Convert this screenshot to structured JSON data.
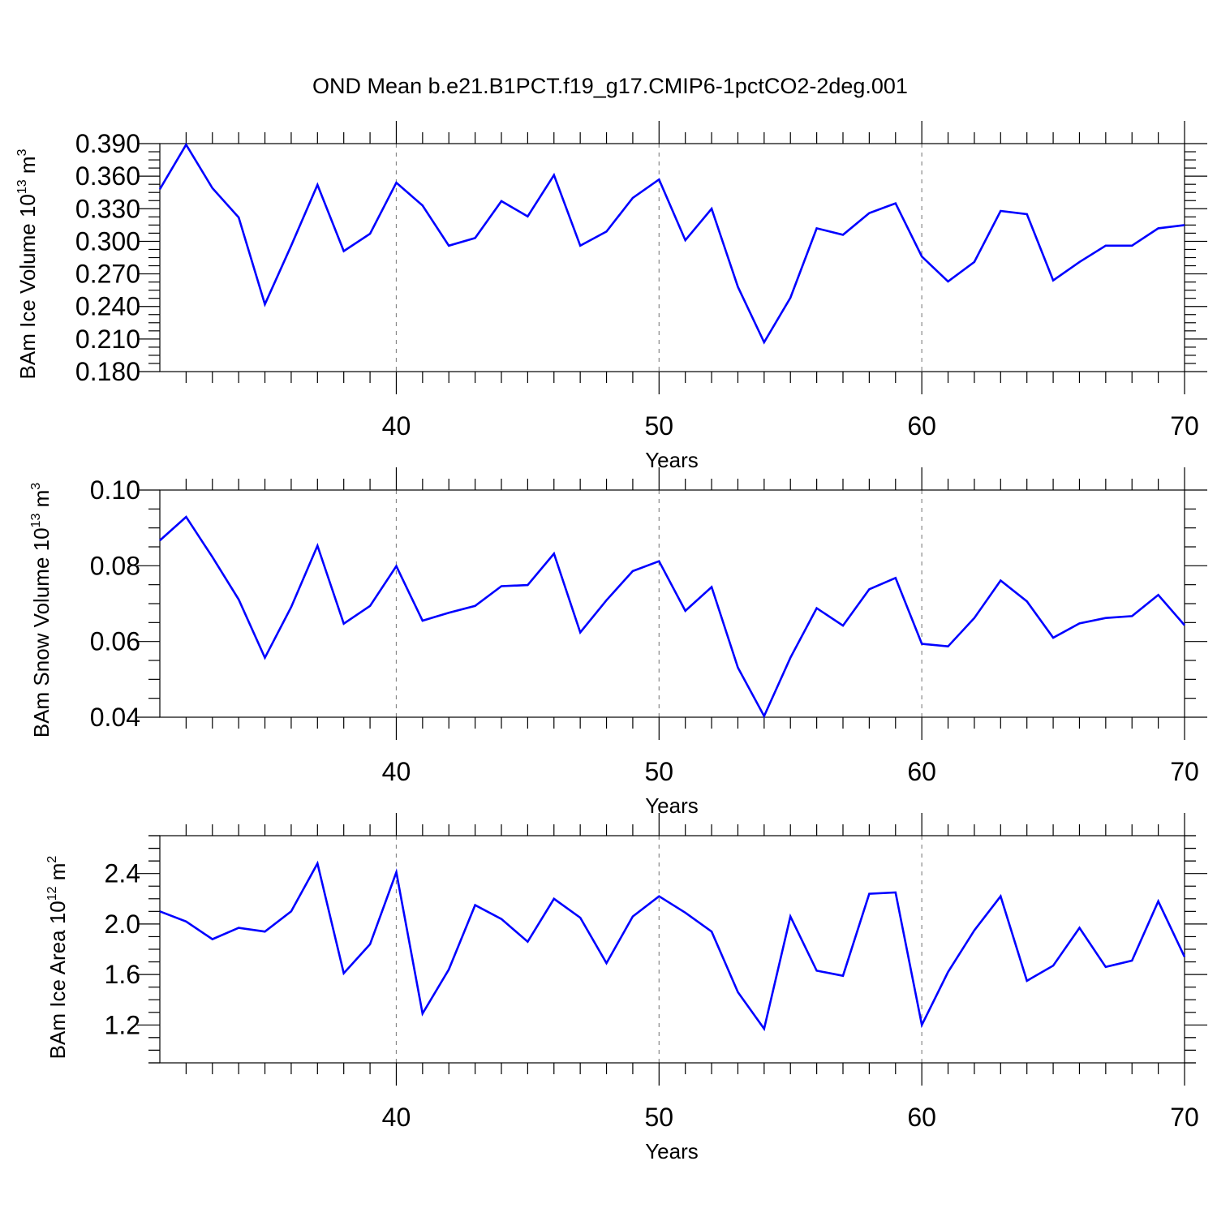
{
  "title": "OND Mean b.e21.B1PCT.f19_g17.CMIP6-1pctCO2-2deg.001",
  "colors": {
    "line": "#0000ff",
    "axis": "#000000",
    "grid": "#888888"
  },
  "chart_data": [
    {
      "type": "line",
      "ylabel": {
        "text": "BAm Ice Volume 10",
        "sup": "13",
        "unit": " m",
        "unit_sup": "3"
      },
      "xlabel": "Years",
      "xlim": [
        31,
        70
      ],
      "ylim": [
        0.18,
        0.39
      ],
      "yticks": [
        "0.180",
        "0.210",
        "0.240",
        "0.270",
        "0.300",
        "0.330",
        "0.360",
        "0.390"
      ],
      "xticks": [
        "40",
        "50",
        "60",
        "70"
      ],
      "grid": "x-major dashed",
      "x": [
        31,
        32,
        33,
        34,
        35,
        36,
        37,
        38,
        39,
        40,
        41,
        42,
        43,
        44,
        45,
        46,
        47,
        48,
        49,
        50,
        51,
        52,
        53,
        54,
        55,
        56,
        57,
        58,
        59,
        60,
        61,
        62,
        63,
        64,
        65,
        66,
        67,
        68,
        69,
        70
      ],
      "series": [
        {
          "values": [
            0.348,
            0.389,
            0.349,
            0.322,
            0.242,
            0.296,
            0.352,
            0.291,
            0.307,
            0.354,
            0.333,
            0.296,
            0.303,
            0.337,
            0.323,
            0.361,
            0.296,
            0.309,
            0.34,
            0.357,
            0.301,
            0.33,
            0.258,
            0.207,
            0.248,
            0.312,
            0.306,
            0.326,
            0.335,
            0.286,
            0.263,
            0.281,
            0.328,
            0.325,
            0.264,
            0.281,
            0.296,
            0.296,
            0.312,
            0.315
          ]
        }
      ]
    },
    {
      "type": "line",
      "ylabel": {
        "text": "BAm Snow Volume 10",
        "sup": "13",
        "unit": " m",
        "unit_sup": "3"
      },
      "xlabel": "Years",
      "xlim": [
        31,
        70
      ],
      "ylim": [
        0.04,
        0.1
      ],
      "yticks": [
        "0.04",
        "0.06",
        "0.08",
        "0.10"
      ],
      "xticks": [
        "40",
        "50",
        "60",
        "70"
      ],
      "grid": "x-major dashed",
      "x": [
        31,
        32,
        33,
        34,
        35,
        36,
        37,
        38,
        39,
        40,
        41,
        42,
        43,
        44,
        45,
        46,
        47,
        48,
        49,
        50,
        51,
        52,
        53,
        54,
        55,
        56,
        57,
        58,
        59,
        60,
        61,
        62,
        63,
        64,
        65,
        66,
        67,
        68,
        69,
        70
      ],
      "series": [
        {
          "values": [
            0.0867,
            0.0929,
            0.0823,
            0.0711,
            0.0557,
            0.0691,
            0.0853,
            0.0647,
            0.0694,
            0.0799,
            0.0655,
            0.0676,
            0.0694,
            0.0746,
            0.0749,
            0.0832,
            0.0624,
            0.0709,
            0.0786,
            0.0812,
            0.0681,
            0.0744,
            0.0531,
            0.0403,
            0.0557,
            0.0688,
            0.0642,
            0.0738,
            0.0768,
            0.0594,
            0.0587,
            0.0662,
            0.0761,
            0.0706,
            0.061,
            0.0648,
            0.0662,
            0.0667,
            0.0723,
            0.0643
          ]
        }
      ]
    },
    {
      "type": "line",
      "ylabel": {
        "text": "BAm Ice Area 10",
        "sup": "12",
        "unit": " m",
        "unit_sup": "2"
      },
      "xlabel": "Years",
      "xlim": [
        31,
        70
      ],
      "ylim": [
        0.9,
        2.7
      ],
      "yticks": [
        "1.2",
        "1.6",
        "2.0",
        "2.4"
      ],
      "xticks": [
        "40",
        "50",
        "60",
        "70"
      ],
      "grid": "x-major dashed",
      "x": [
        31,
        32,
        33,
        34,
        35,
        36,
        37,
        38,
        39,
        40,
        41,
        42,
        43,
        44,
        45,
        46,
        47,
        48,
        49,
        50,
        51,
        52,
        53,
        54,
        55,
        56,
        57,
        58,
        59,
        60,
        61,
        62,
        63,
        64,
        65,
        66,
        67,
        68,
        69,
        70
      ],
      "series": [
        {
          "values": [
            2.1,
            2.02,
            1.88,
            1.97,
            1.94,
            2.1,
            2.48,
            1.61,
            1.84,
            2.41,
            1.29,
            1.64,
            2.15,
            2.04,
            1.86,
            2.2,
            2.05,
            1.69,
            2.06,
            2.22,
            2.09,
            1.94,
            1.46,
            1.17,
            2.06,
            1.63,
            1.59,
            2.24,
            2.25,
            1.2,
            1.62,
            1.95,
            2.22,
            1.55,
            1.67,
            1.97,
            1.66,
            1.71,
            2.18,
            1.74
          ]
        }
      ]
    }
  ]
}
